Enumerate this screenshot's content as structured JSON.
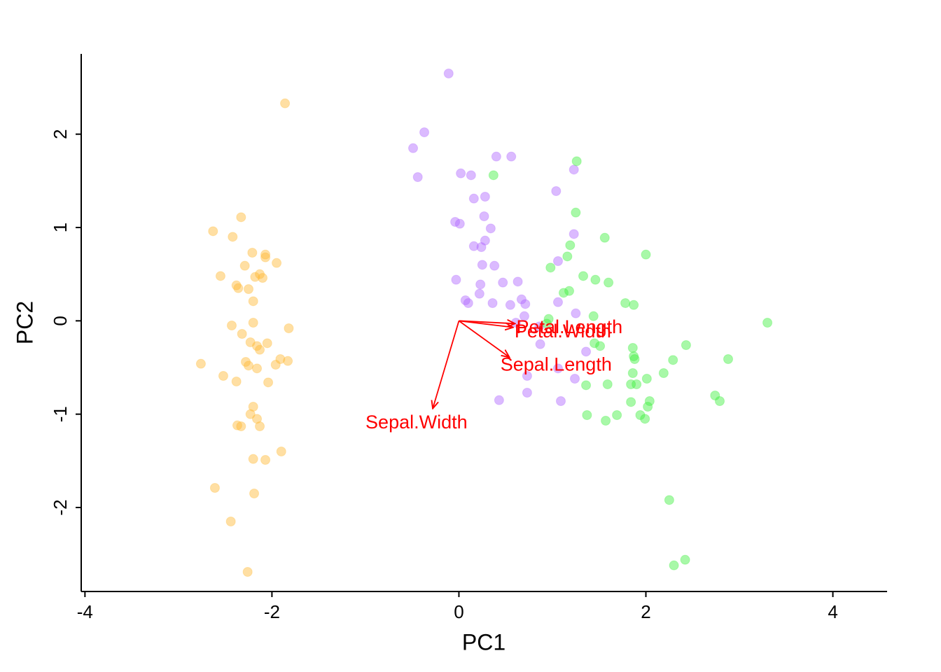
{
  "chart_data": {
    "type": "scatter",
    "xlabel": "PC1",
    "ylabel": "PC2",
    "xlim": [
      -4.04,
      4.58
    ],
    "ylim": [
      -2.9,
      2.86
    ],
    "xticks": [
      -4,
      -2,
      0,
      2,
      4
    ],
    "yticks": [
      -2,
      -1,
      0,
      1,
      2
    ],
    "grid": false,
    "series": [
      {
        "color": "#ffb833",
        "x": [
          -1.86,
          -2.33,
          -2.63,
          -2.42,
          -2.21,
          -2.07,
          -2.07,
          -2.29,
          -1.95,
          -2.55,
          -2.13,
          -2.18,
          -2.1,
          -2.38,
          -2.36,
          -2.25,
          -2.2,
          -2.43,
          -2.2,
          -1.82,
          -2.32,
          -2.23,
          -2.05,
          -2.16,
          -2.13,
          -2.76,
          -1.91,
          -1.83,
          -2.28,
          -2.25,
          -2.16,
          -1.96,
          -2.52,
          -2.38,
          -2.04,
          -2.2,
          -2.23,
          -2.16,
          -2.37,
          -2.33,
          -2.13,
          -1.9,
          -2.2,
          -2.07,
          -2.61,
          -2.19,
          -2.44,
          -2.26
        ],
        "y": [
          2.33,
          1.11,
          0.96,
          0.9,
          0.73,
          0.71,
          0.68,
          0.59,
          0.62,
          0.48,
          0.5,
          0.47,
          0.46,
          0.38,
          0.35,
          0.34,
          0.21,
          -0.05,
          -0.02,
          -0.08,
          -0.14,
          -0.23,
          -0.24,
          -0.27,
          -0.31,
          -0.46,
          -0.41,
          -0.43,
          -0.44,
          -0.48,
          -0.51,
          -0.47,
          -0.59,
          -0.65,
          -0.66,
          -0.92,
          -1.0,
          -1.05,
          -1.12,
          -1.13,
          -1.13,
          -1.4,
          -1.48,
          -1.49,
          -1.79,
          -1.85,
          -2.15,
          -2.69
        ]
      },
      {
        "color": "#b066ff",
        "x": [
          -0.11,
          -0.37,
          -0.49,
          0.4,
          0.56,
          -0.44,
          0.02,
          0.13,
          1.23,
          1.04,
          0.16,
          0.28,
          -0.04,
          0.01,
          0.27,
          0.34,
          1.23,
          0.16,
          0.24,
          0.28,
          1.06,
          0.25,
          0.38,
          -0.03,
          0.23,
          0.47,
          0.63,
          0.07,
          0.1,
          0.22,
          0.36,
          0.67,
          0.55,
          0.71,
          0.7,
          1.25,
          0.61,
          0.87,
          1.36,
          1.06,
          0.73,
          0.73,
          0.43,
          1.09,
          1.24,
          1.06,
          0.86
        ],
        "y": [
          2.65,
          2.02,
          1.85,
          1.76,
          1.76,
          1.54,
          1.58,
          1.56,
          1.62,
          1.39,
          1.31,
          1.33,
          1.06,
          1.04,
          1.12,
          0.99,
          0.93,
          0.8,
          0.79,
          0.86,
          0.64,
          0.6,
          0.59,
          0.44,
          0.39,
          0.41,
          0.42,
          0.22,
          0.19,
          0.29,
          0.19,
          0.23,
          0.17,
          0.18,
          0.05,
          0.08,
          -0.02,
          -0.25,
          -0.33,
          -0.51,
          -0.59,
          -0.77,
          -0.85,
          -0.86,
          -0.62,
          0.2,
          -0.06
        ]
      },
      {
        "color": "#3df03d",
        "x": [
          0.37,
          1.26,
          1.25,
          1.19,
          1.16,
          1.56,
          2.0,
          0.98,
          1.33,
          1.46,
          1.6,
          1.12,
          1.18,
          1.78,
          1.87,
          1.44,
          0.96,
          0.94,
          1.45,
          1.51,
          1.86,
          1.87,
          1.88,
          2.43,
          2.29,
          1.86,
          2.19,
          2.01,
          1.84,
          1.9,
          1.59,
          1.36,
          2.04,
          2.02,
          2.74,
          2.79,
          1.84,
          2.88,
          3.3,
          1.37,
          1.69,
          1.57,
          1.94,
          1.99,
          2.25,
          2.42,
          2.3
        ],
        "y": [
          1.56,
          1.71,
          1.16,
          0.81,
          0.69,
          0.89,
          0.71,
          0.57,
          0.48,
          0.44,
          0.41,
          0.3,
          0.32,
          0.19,
          0.17,
          0.05,
          0.02,
          -0.03,
          -0.24,
          -0.27,
          -0.29,
          -0.38,
          -0.41,
          -0.26,
          -0.42,
          -0.56,
          -0.56,
          -0.62,
          -0.68,
          -0.68,
          -0.68,
          -0.69,
          -0.86,
          -0.92,
          -0.8,
          -0.86,
          -0.87,
          -0.41,
          -0.02,
          -1.01,
          -1.01,
          -1.07,
          -1.01,
          -1.05,
          -1.92,
          -2.56,
          -2.62
        ]
      }
    ],
    "arrow_color": "#ff0000",
    "arrows": [
      {
        "label": "Petal.Length",
        "x": 0.6,
        "y": -0.03
      },
      {
        "label": "Petal.Width",
        "x": 0.58,
        "y": -0.07
      },
      {
        "label": "Sepal.Length",
        "x": 0.54,
        "y": -0.39
      },
      {
        "label": "Sepal.Width",
        "x": -0.28,
        "y": -0.94
      }
    ]
  }
}
